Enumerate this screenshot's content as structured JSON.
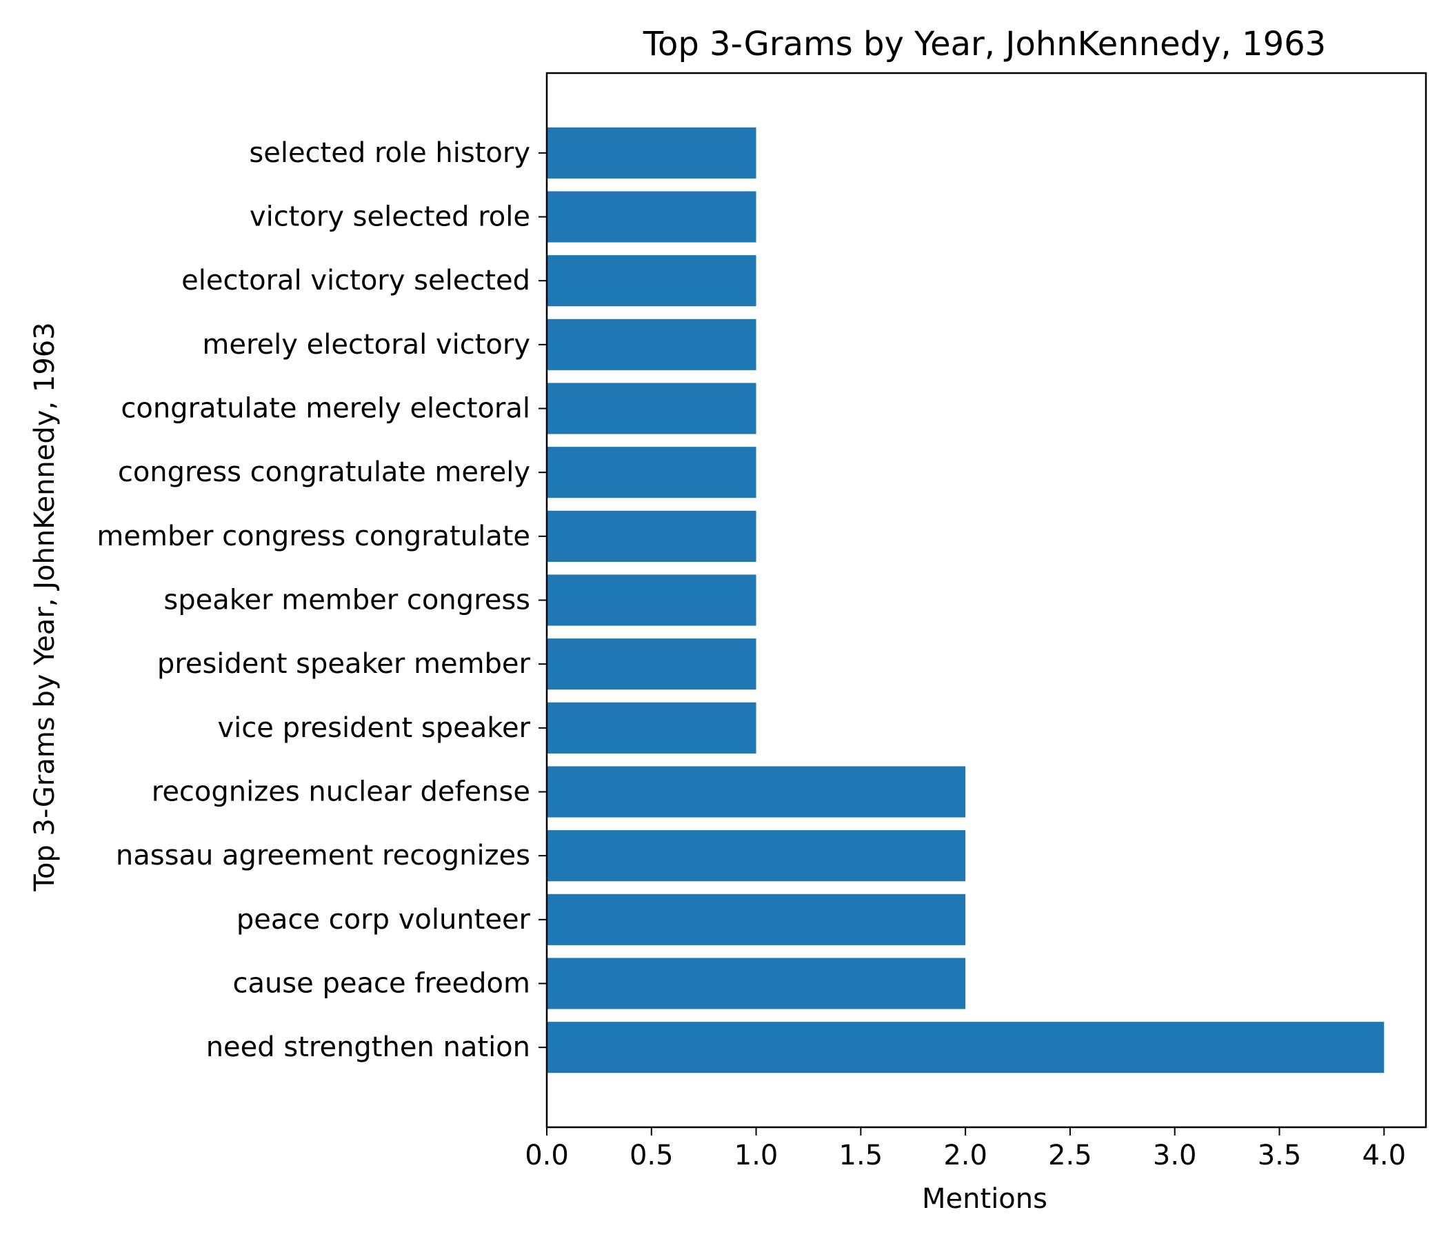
{
  "chart_data": {
    "type": "bar",
    "orientation": "horizontal",
    "title": "Top 3-Grams by Year, JohnKennedy, 1963",
    "xlabel": "Mentions",
    "ylabel": "Top 3-Grams by Year, JohnKennedy, 1963",
    "xlim": [
      0,
      4.2
    ],
    "xticks": [
      "0.0",
      "0.5",
      "1.0",
      "1.5",
      "2.0",
      "2.5",
      "3.0",
      "3.5",
      "4.0"
    ],
    "grid": false,
    "bar_color": "#1f77b4",
    "categories": [
      "need strengthen nation",
      "cause peace freedom",
      "peace corp volunteer",
      "nassau agreement recognizes",
      "recognizes nuclear defense",
      "vice president speaker",
      "president speaker member",
      "speaker member congress",
      "member congress congratulate",
      "congress congratulate merely",
      "congratulate merely electoral",
      "merely electoral victory",
      "electoral victory selected",
      "victory selected role",
      "selected role history"
    ],
    "values": [
      4,
      2,
      2,
      2,
      2,
      1,
      1,
      1,
      1,
      1,
      1,
      1,
      1,
      1,
      1
    ]
  }
}
